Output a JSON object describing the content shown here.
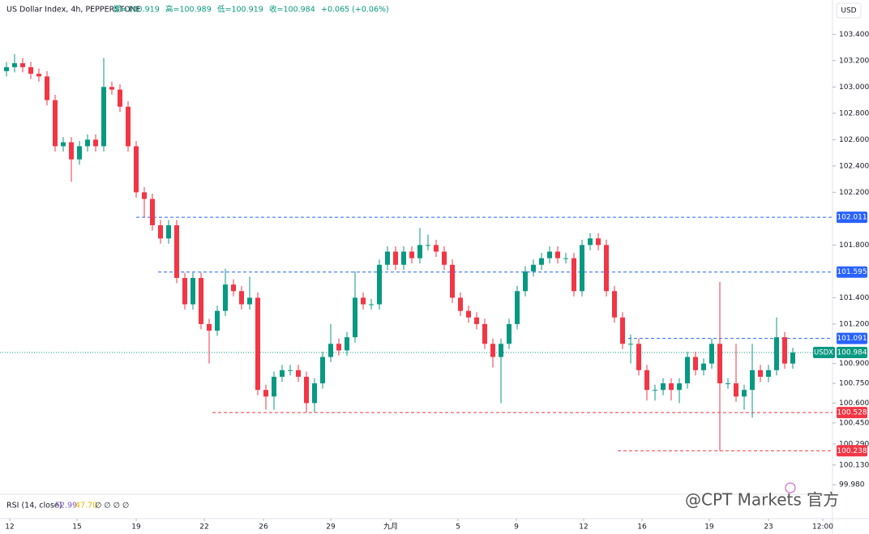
{
  "chart_data": {
    "type": "candlestick",
    "title": "US Dollar Index, 4h, PEPPERSTONE",
    "quote": [
      "開=100.919",
      "高=100.989",
      "低=100.919",
      "收=100.984",
      "+0.065 (+0.06%)"
    ],
    "currency": "USD",
    "symbol": "USDX",
    "indicator": "RSI (14, close)",
    "indicator_values": [
      "52.99",
      "47.70",
      "∅ ∅ ∅ ∅"
    ],
    "watermark": "@CPT Markets 官方",
    "up_color": "#089981",
    "down_color": "#f23645",
    "grid": false,
    "xlim": [
      -0.8,
      101.7
    ],
    "xticks": [
      {
        "value": 0.4,
        "label": "12"
      },
      {
        "value": 8.7,
        "label": "15"
      },
      {
        "value": 16,
        "label": "19"
      },
      {
        "value": 24.4,
        "label": "22"
      },
      {
        "value": 31.7,
        "label": "26"
      },
      {
        "value": 40,
        "label": "29"
      },
      {
        "value": 47.4,
        "label": "九月"
      },
      {
        "value": 55.7,
        "label": "5"
      },
      {
        "value": 62.9,
        "label": "9"
      },
      {
        "value": 71.2,
        "label": "12"
      },
      {
        "value": 78.4,
        "label": "16"
      },
      {
        "value": 86.7,
        "label": "19"
      },
      {
        "value": 94,
        "label": "23"
      },
      {
        "value": 100.7,
        "label": "12:00"
      }
    ],
    "ylim": [
      99.92,
      103.66
    ],
    "yticks": [
      {
        "value": 103.4,
        "label": "103.400"
      },
      {
        "value": 103.2,
        "label": "103.200"
      },
      {
        "value": 103.0,
        "label": "103.000"
      },
      {
        "value": 102.8,
        "label": "102.800"
      },
      {
        "value": 102.6,
        "label": "102.600"
      },
      {
        "value": 102.4,
        "label": "102.400"
      },
      {
        "value": 102.2,
        "label": "102.200"
      },
      {
        "value": 101.8,
        "label": "101.800"
      },
      {
        "value": 101.4,
        "label": "101.400"
      },
      {
        "value": 101.2,
        "label": "101.200"
      },
      {
        "value": 100.9,
        "label": "100.900"
      },
      {
        "value": 100.75,
        "label": "100.750"
      },
      {
        "value": 100.6,
        "label": "100.600"
      },
      {
        "value": 100.45,
        "label": "100.450"
      },
      {
        "value": 100.29,
        "label": "100.290"
      },
      {
        "value": 100.13,
        "label": "100.130"
      },
      {
        "value": 99.98,
        "label": "99.980"
      }
    ],
    "levels": [
      {
        "value": 102.011,
        "color": "#2962ff",
        "from": 16
      },
      {
        "value": 101.595,
        "color": "#2962ff",
        "from": 18.7
      },
      {
        "value": 101.091,
        "color": "#2962ff",
        "from": 76.7
      },
      {
        "value": 100.528,
        "color": "#f23645",
        "from": 25.4
      },
      {
        "value": 100.238,
        "color": "#f23645",
        "from": 75.4
      }
    ],
    "last_price": 100.984,
    "open": [
      103.12,
      103.15,
      103.18,
      103.15,
      103.1,
      103.08,
      102.9,
      102.55,
      102.58,
      102.45,
      102.55,
      102.6,
      102.55,
      103.0,
      102.98,
      102.85,
      102.55,
      102.2,
      102.15,
      101.95,
      101.85,
      101.95,
      101.55,
      101.35,
      101.55,
      101.2,
      101.15,
      101.3,
      101.5,
      101.45,
      101.35,
      101.4,
      100.7,
      100.65,
      100.8,
      100.85,
      100.85,
      100.8,
      100.6,
      100.75,
      100.95,
      101.05,
      101.0,
      101.1,
      101.4,
      101.35,
      101.35,
      101.65,
      101.75,
      101.65,
      101.75,
      101.7,
      101.8,
      101.8,
      101.75,
      101.65,
      101.4,
      101.3,
      101.25,
      101.2,
      101.05,
      100.95,
      101.05,
      101.2,
      101.45,
      101.6,
      101.65,
      101.7,
      101.75,
      101.7,
      101.7,
      101.45,
      101.8,
      101.85,
      101.8,
      101.45,
      101.25,
      101.05,
      101.05,
      100.85,
      100.7,
      100.7,
      100.75,
      100.7,
      100.75,
      100.95,
      100.85,
      100.9,
      101.05,
      100.75,
      100.75,
      100.65,
      100.7,
      100.85,
      100.8,
      100.85,
      101.1,
      100.9
    ],
    "high": [
      103.19,
      103.25,
      103.22,
      103.19,
      103.14,
      103.12,
      102.94,
      102.62,
      102.62,
      102.59,
      102.64,
      102.64,
      103.22,
      103.04,
      103.02,
      102.89,
      102.59,
      102.24,
      102.19,
      101.99,
      101.99,
      101.99,
      101.59,
      101.59,
      101.59,
      101.24,
      101.34,
      101.62,
      101.54,
      101.49,
      101.56,
      101.44,
      100.74,
      100.84,
      100.89,
      100.89,
      100.89,
      100.84,
      100.79,
      100.99,
      101.2,
      101.09,
      101.14,
      101.6,
      101.44,
      101.39,
      101.69,
      101.79,
      101.79,
      101.79,
      101.79,
      101.93,
      101.88,
      101.84,
      101.79,
      101.69,
      101.44,
      101.34,
      101.29,
      101.24,
      101.09,
      101.09,
      101.24,
      101.49,
      101.64,
      101.69,
      101.74,
      101.79,
      101.79,
      101.74,
      101.74,
      101.84,
      101.89,
      101.89,
      101.84,
      101.49,
      101.29,
      101.12,
      101.09,
      100.89,
      100.74,
      100.79,
      100.79,
      100.79,
      100.99,
      100.99,
      100.94,
      101.09,
      101.52,
      100.79,
      101.05,
      100.74,
      101.05,
      100.89,
      100.89,
      101.25,
      101.14,
      101.02
    ],
    "low": [
      103.08,
      103.11,
      103.11,
      103.06,
      103.04,
      102.86,
      102.51,
      102.51,
      102.28,
      102.41,
      102.51,
      102.51,
      102.51,
      102.94,
      102.81,
      102.51,
      102.16,
      102.01,
      101.91,
      101.81,
      101.81,
      101.51,
      101.31,
      101.31,
      101.16,
      100.9,
      101.11,
      101.26,
      101.41,
      101.31,
      101.31,
      100.66,
      100.55,
      100.55,
      100.76,
      100.81,
      100.76,
      100.53,
      100.53,
      100.71,
      100.91,
      100.96,
      100.96,
      101.06,
      101.31,
      101.31,
      101.31,
      101.61,
      101.61,
      101.61,
      101.66,
      101.66,
      101.76,
      101.71,
      101.61,
      101.36,
      101.26,
      101.21,
      101.16,
      101.01,
      100.87,
      100.6,
      101.01,
      101.16,
      101.41,
      101.56,
      101.61,
      101.66,
      101.66,
      101.66,
      101.41,
      101.41,
      101.76,
      101.76,
      101.41,
      101.21,
      101.01,
      100.9,
      100.81,
      100.62,
      100.62,
      100.66,
      100.62,
      100.6,
      100.71,
      100.81,
      100.81,
      100.86,
      100.24,
      100.71,
      100.61,
      100.55,
      100.49,
      100.76,
      100.76,
      100.81,
      100.86,
      100.86
    ],
    "close": [
      103.15,
      103.18,
      103.15,
      103.1,
      103.08,
      102.9,
      102.55,
      102.58,
      102.45,
      102.55,
      102.6,
      102.55,
      103.0,
      102.98,
      102.85,
      102.55,
      102.2,
      102.15,
      101.95,
      101.85,
      101.95,
      101.55,
      101.35,
      101.55,
      101.2,
      101.15,
      101.3,
      101.5,
      101.45,
      101.35,
      101.4,
      100.7,
      100.65,
      100.8,
      100.85,
      100.85,
      100.8,
      100.6,
      100.75,
      100.95,
      101.05,
      101.0,
      101.1,
      101.4,
      101.35,
      101.35,
      101.65,
      101.75,
      101.65,
      101.75,
      101.7,
      101.8,
      101.8,
      101.75,
      101.65,
      101.4,
      101.3,
      101.25,
      101.2,
      101.05,
      100.95,
      101.05,
      101.2,
      101.45,
      101.6,
      101.65,
      101.7,
      101.75,
      101.7,
      101.7,
      101.45,
      101.8,
      101.85,
      101.8,
      101.45,
      101.25,
      101.05,
      101.05,
      100.85,
      100.7,
      100.7,
      100.75,
      100.7,
      100.75,
      100.95,
      100.85,
      100.9,
      101.05,
      100.75,
      100.75,
      100.65,
      100.7,
      100.85,
      100.8,
      100.85,
      101.1,
      100.9,
      100.984
    ]
  }
}
